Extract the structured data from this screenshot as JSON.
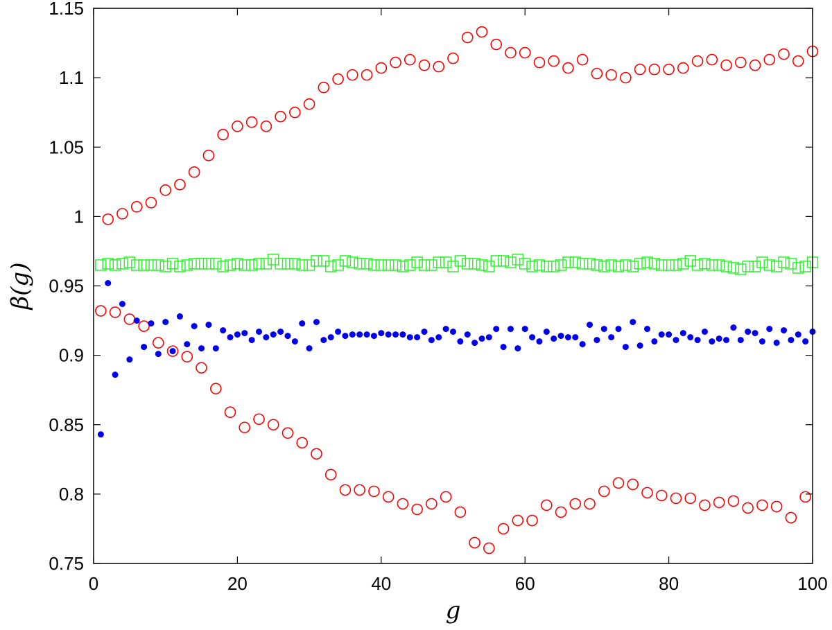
{
  "chart_data": {
    "type": "scatter",
    "title": "",
    "xlabel": "g",
    "ylabel": "β(g)",
    "xlim": [
      0,
      100
    ],
    "ylim": [
      0.75,
      1.15
    ],
    "xticks": [
      0,
      20,
      40,
      60,
      80,
      100
    ],
    "xtick_labels": [
      "0",
      "20",
      "40",
      "60",
      "80",
      "100"
    ],
    "yticks": [
      0.75,
      0.8,
      0.85,
      0.9,
      0.95,
      1.0,
      1.05,
      1.1,
      1.15
    ],
    "ytick_labels": [
      "0.75",
      "0.8",
      "0.85",
      "0.9",
      "0.95",
      "1",
      "1.05",
      "1.1",
      "1.15"
    ],
    "grid": false,
    "legend": "none",
    "series": [
      {
        "marker": "open-circle",
        "color": "#ff0000",
        "x": [
          2,
          4,
          6,
          8,
          10,
          12,
          14,
          16,
          18,
          20,
          22,
          24,
          26,
          28,
          30,
          32,
          34,
          36,
          38,
          40,
          42,
          44,
          46,
          48,
          50,
          52,
          54,
          56,
          58,
          60,
          62,
          64,
          66,
          68,
          70,
          72,
          74,
          76,
          78,
          80,
          82,
          84,
          86,
          88,
          90,
          92,
          94,
          96,
          98,
          100
        ],
        "y": [
          0.998,
          1.002,
          1.007,
          1.01,
          1.019,
          1.023,
          1.032,
          1.044,
          1.059,
          1.065,
          1.068,
          1.065,
          1.072,
          1.075,
          1.081,
          1.093,
          1.099,
          1.102,
          1.102,
          1.107,
          1.111,
          1.113,
          1.109,
          1.108,
          1.114,
          1.129,
          1.133,
          1.124,
          1.118,
          1.118,
          1.111,
          1.112,
          1.107,
          1.113,
          1.103,
          1.102,
          1.1,
          1.106,
          1.106,
          1.106,
          1.107,
          1.112,
          1.113,
          1.109,
          1.111,
          1.109,
          1.113,
          1.117,
          1.112,
          1.119
        ]
      },
      {
        "marker": "open-circle",
        "color": "#ff0000",
        "x": [
          1,
          3,
          5,
          7,
          9,
          11,
          13,
          15,
          17,
          19,
          21,
          23,
          25,
          27,
          29,
          31,
          33,
          35,
          37,
          39,
          41,
          43,
          45,
          47,
          49,
          51,
          53,
          55,
          57,
          59,
          61,
          63,
          65,
          67,
          69,
          71,
          73,
          75,
          77,
          79,
          81,
          83,
          85,
          87,
          89,
          91,
          93,
          95,
          97,
          99
        ],
        "y": [
          0.932,
          0.931,
          0.926,
          0.921,
          0.909,
          0.903,
          0.899,
          0.891,
          0.876,
          0.859,
          0.848,
          0.854,
          0.85,
          0.844,
          0.837,
          0.829,
          0.814,
          0.803,
          0.803,
          0.802,
          0.798,
          0.793,
          0.789,
          0.793,
          0.798,
          0.787,
          0.765,
          0.761,
          0.775,
          0.781,
          0.781,
          0.792,
          0.787,
          0.793,
          0.793,
          0.802,
          0.808,
          0.807,
          0.801,
          0.799,
          0.797,
          0.797,
          0.792,
          0.794,
          0.795,
          0.79,
          0.792,
          0.791,
          0.783,
          0.798
        ]
      },
      {
        "marker": "open-square",
        "color": "#33ee33",
        "x": [
          1,
          2,
          3,
          4,
          5,
          6,
          7,
          8,
          9,
          10,
          11,
          12,
          13,
          14,
          15,
          16,
          17,
          18,
          19,
          20,
          21,
          22,
          23,
          24,
          25,
          26,
          27,
          28,
          29,
          30,
          31,
          32,
          33,
          34,
          35,
          36,
          37,
          38,
          39,
          40,
          41,
          42,
          43,
          44,
          45,
          46,
          47,
          48,
          49,
          50,
          51,
          52,
          53,
          54,
          55,
          56,
          57,
          58,
          59,
          60,
          61,
          62,
          63,
          64,
          65,
          66,
          67,
          68,
          69,
          70,
          71,
          72,
          73,
          74,
          75,
          76,
          77,
          78,
          79,
          80,
          81,
          82,
          83,
          84,
          85,
          86,
          87,
          88,
          89,
          90,
          91,
          92,
          93,
          94,
          95,
          96,
          97,
          98,
          99,
          100
        ],
        "y": [
          0.965,
          0.966,
          0.965,
          0.966,
          0.967,
          0.965,
          0.965,
          0.965,
          0.965,
          0.964,
          0.966,
          0.964,
          0.965,
          0.966,
          0.966,
          0.966,
          0.966,
          0.964,
          0.965,
          0.966,
          0.965,
          0.965,
          0.966,
          0.966,
          0.969,
          0.966,
          0.966,
          0.966,
          0.965,
          0.965,
          0.968,
          0.968,
          0.964,
          0.965,
          0.968,
          0.967,
          0.966,
          0.966,
          0.965,
          0.965,
          0.965,
          0.965,
          0.964,
          0.965,
          0.967,
          0.965,
          0.965,
          0.967,
          0.967,
          0.964,
          0.968,
          0.966,
          0.966,
          0.965,
          0.964,
          0.968,
          0.968,
          0.967,
          0.969,
          0.966,
          0.964,
          0.965,
          0.964,
          0.964,
          0.965,
          0.967,
          0.967,
          0.966,
          0.966,
          0.965,
          0.964,
          0.965,
          0.964,
          0.965,
          0.964,
          0.966,
          0.967,
          0.966,
          0.965,
          0.965,
          0.965,
          0.966,
          0.968,
          0.965,
          0.966,
          0.965,
          0.965,
          0.964,
          0.963,
          0.962,
          0.964,
          0.964,
          0.967,
          0.965,
          0.964,
          0.967,
          0.966,
          0.963,
          0.964,
          0.967
        ]
      },
      {
        "marker": "filled-dot",
        "color": "#0000ee",
        "x": [
          1,
          2,
          3,
          4,
          5,
          6,
          7,
          8,
          9,
          10,
          11,
          12,
          13,
          14,
          15,
          16,
          17,
          18,
          19,
          20,
          21,
          22,
          23,
          24,
          25,
          26,
          27,
          28,
          29,
          30,
          31,
          32,
          33,
          34,
          35,
          36,
          37,
          38,
          39,
          40,
          41,
          42,
          43,
          44,
          45,
          46,
          47,
          48,
          49,
          50,
          51,
          52,
          53,
          54,
          55,
          56,
          57,
          58,
          59,
          60,
          61,
          62,
          63,
          64,
          65,
          66,
          67,
          68,
          69,
          70,
          71,
          72,
          73,
          74,
          75,
          76,
          77,
          78,
          79,
          80,
          81,
          82,
          83,
          84,
          85,
          86,
          87,
          88,
          89,
          90,
          91,
          92,
          93,
          94,
          95,
          96,
          97,
          98,
          99,
          100
        ],
        "y": [
          0.843,
          0.952,
          0.886,
          0.937,
          0.897,
          0.925,
          0.906,
          0.923,
          0.901,
          0.924,
          0.903,
          0.928,
          0.908,
          0.921,
          0.905,
          0.922,
          0.905,
          0.918,
          0.913,
          0.915,
          0.916,
          0.911,
          0.917,
          0.913,
          0.915,
          0.917,
          0.914,
          0.91,
          0.923,
          0.905,
          0.924,
          0.911,
          0.913,
          0.917,
          0.914,
          0.915,
          0.915,
          0.915,
          0.914,
          0.916,
          0.915,
          0.915,
          0.915,
          0.913,
          0.913,
          0.917,
          0.911,
          0.913,
          0.919,
          0.917,
          0.91,
          0.915,
          0.909,
          0.912,
          0.913,
          0.919,
          0.906,
          0.919,
          0.905,
          0.919,
          0.913,
          0.91,
          0.917,
          0.912,
          0.914,
          0.913,
          0.913,
          0.908,
          0.922,
          0.911,
          0.919,
          0.913,
          0.919,
          0.906,
          0.924,
          0.907,
          0.919,
          0.91,
          0.915,
          0.915,
          0.911,
          0.916,
          0.913,
          0.911,
          0.917,
          0.91,
          0.912,
          0.911,
          0.92,
          0.911,
          0.917,
          0.916,
          0.91,
          0.919,
          0.909,
          0.918,
          0.911,
          0.915,
          0.91,
          0.917
        ]
      }
    ]
  }
}
